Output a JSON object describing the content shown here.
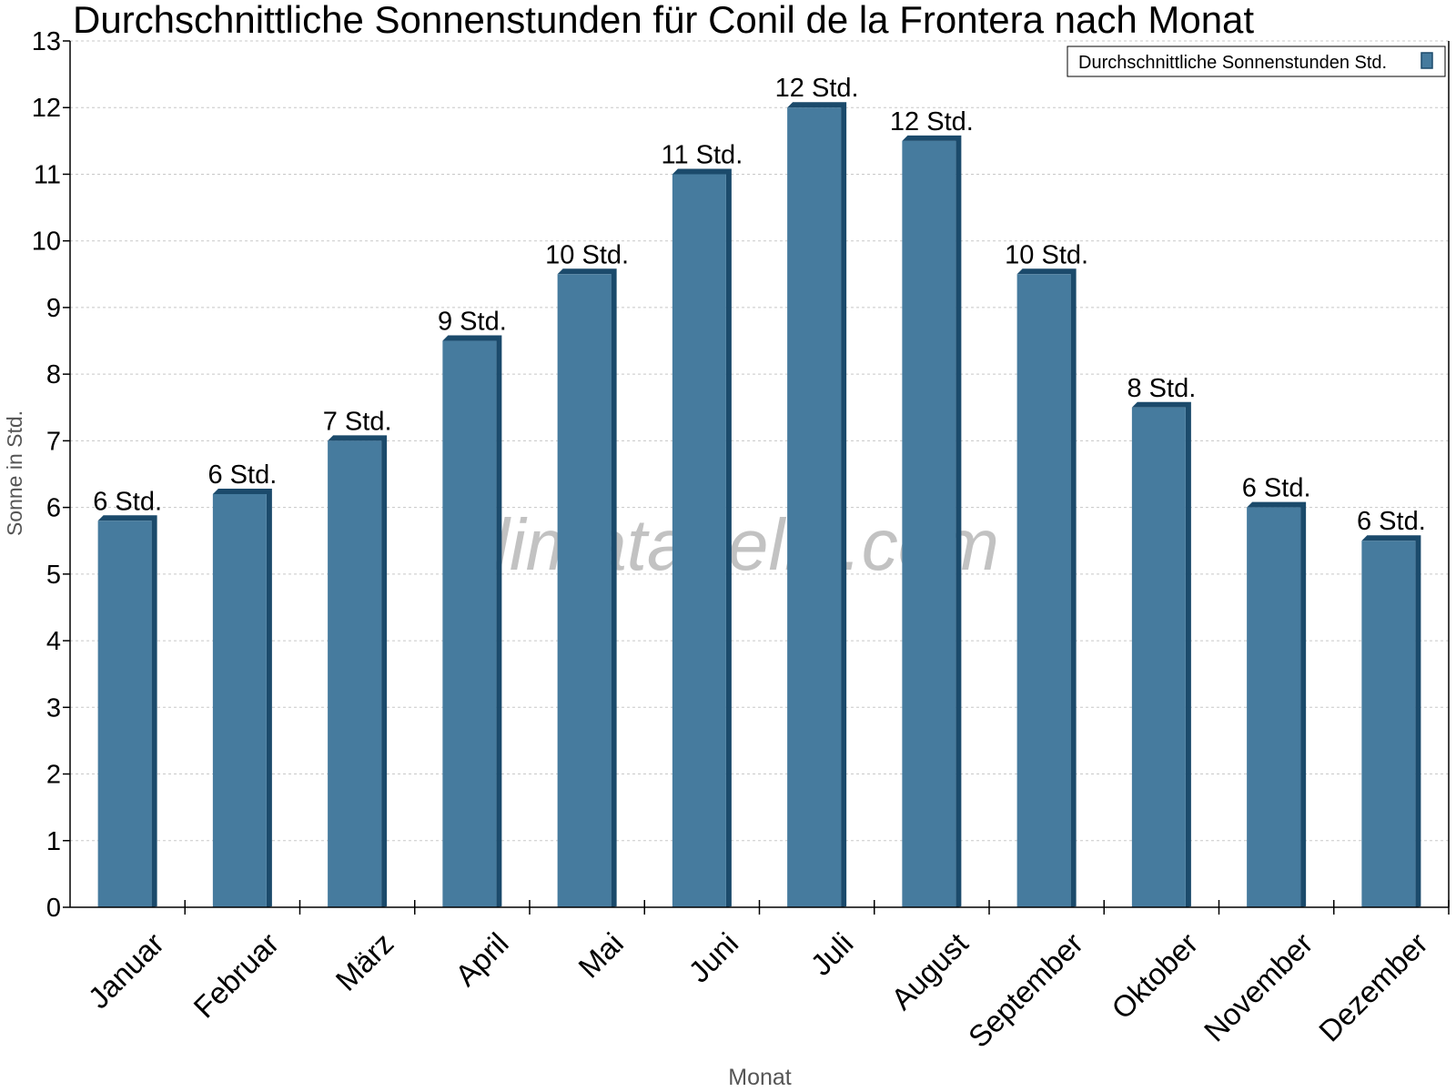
{
  "chart_data": {
    "type": "bar",
    "title": "Durchschnittliche Sonnenstunden für Conil de la Frontera nach Monat",
    "xlabel": "Monat",
    "ylabel": "Sonne in Std.",
    "ylim": [
      0,
      13
    ],
    "yticks": [
      "0",
      "1",
      "2",
      "3",
      "4",
      "5",
      "6",
      "7",
      "8",
      "9",
      "10",
      "11",
      "12",
      "13"
    ],
    "grid": true,
    "legend_position": "top-right",
    "categories": [
      "Januar",
      "Februar",
      "März",
      "April",
      "Mai",
      "Juni",
      "Juli",
      "August",
      "September",
      "Oktober",
      "November",
      "Dezember"
    ],
    "series": [
      {
        "name": "Durchschnittliche Sonnenstunden Std.",
        "values": [
          5.8,
          6.2,
          7.0,
          8.5,
          9.5,
          11.0,
          12.0,
          11.5,
          9.5,
          7.5,
          6.0,
          5.5
        ],
        "data_labels": [
          "6 Std.",
          "6 Std.",
          "7 Std.",
          "9 Std.",
          "10 Std.",
          "11 Std.",
          "12 Std.",
          "12 Std.",
          "10 Std.",
          "8 Std.",
          "6 Std.",
          "6 Std."
        ],
        "color": "#467b9e",
        "side_color": "#1b4a6b"
      }
    ],
    "watermark": "klimatabelle.com"
  }
}
